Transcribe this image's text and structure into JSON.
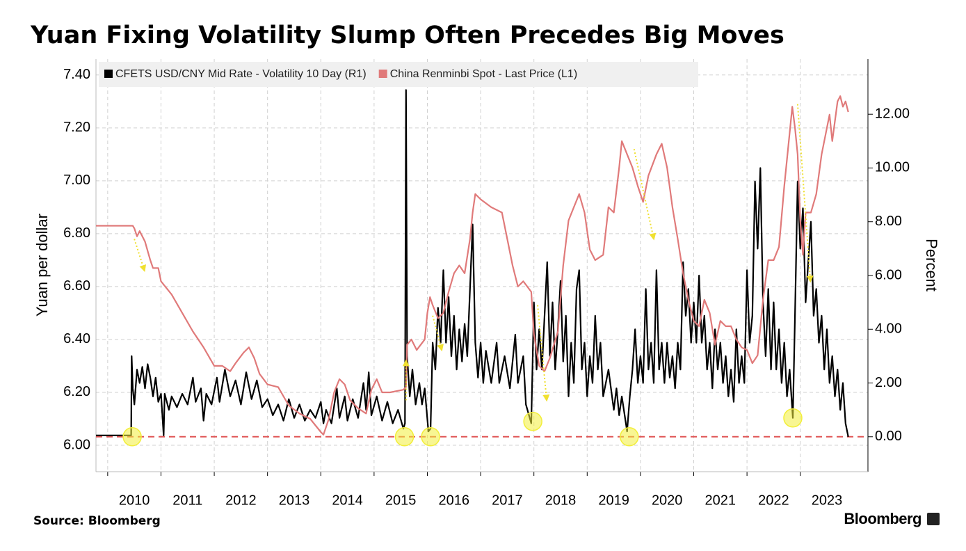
{
  "chart_data": {
    "type": "line",
    "title": "Yuan Fixing Volatility Slump Often Precedes Big Moves",
    "source": "Source: Bloomberg",
    "brand": "Bloomberg",
    "ylabel": "Yuan per dollar",
    "y2label": "Percent",
    "xlim": [
      2009.78,
      2024.27
    ],
    "xticks": [
      2010,
      2011,
      2012,
      2013,
      2014,
      2015,
      2016,
      2017,
      2018,
      2019,
      2020,
      2021,
      2022,
      2023
    ],
    "ylim": [
      5.9,
      7.46
    ],
    "yticks": [
      {
        "value": 6.0,
        "label": "6.00"
      },
      {
        "value": 6.2,
        "label": "6.20"
      },
      {
        "value": 6.4,
        "label": "6.40"
      },
      {
        "value": 6.6,
        "label": "6.60"
      },
      {
        "value": 6.8,
        "label": "6.80"
      },
      {
        "value": 7.0,
        "label": "7.00"
      },
      {
        "value": 7.2,
        "label": "7.20"
      },
      {
        "value": 7.4,
        "label": "7.40"
      }
    ],
    "y2lim": [
      -1.3,
      14.05
    ],
    "y2ticks": [
      {
        "value": 0,
        "label": "0.00"
      },
      {
        "value": 2,
        "label": "2.00"
      },
      {
        "value": 4,
        "label": "4.00"
      },
      {
        "value": 6,
        "label": "6.00"
      },
      {
        "value": 8,
        "label": "8.00"
      },
      {
        "value": 10,
        "label": "10.00"
      },
      {
        "value": 12,
        "label": "12.00"
      }
    ],
    "grid": true,
    "legend": "top-left",
    "series": [
      {
        "name": "CFETS USD/CNY Mid Rate - Volatility 10 Day (R1)",
        "color": "#000000",
        "axis": "y2",
        "x": [
          2009.78,
          2010.0,
          2010.2,
          2010.44,
          2010.45,
          2010.47,
          2010.5,
          2010.55,
          2010.6,
          2010.65,
          2010.7,
          2010.75,
          2010.8,
          2010.85,
          2010.9,
          2010.95,
          2011.0,
          2011.05,
          2011.07,
          2011.15,
          2011.2,
          2011.3,
          2011.4,
          2011.5,
          2011.6,
          2011.65,
          2011.75,
          2011.8,
          2011.85,
          2011.95,
          2012.05,
          2012.1,
          2012.2,
          2012.3,
          2012.4,
          2012.5,
          2012.6,
          2012.7,
          2012.8,
          2012.9,
          2013.0,
          2013.1,
          2013.2,
          2013.3,
          2013.4,
          2013.5,
          2013.6,
          2013.7,
          2013.8,
          2013.9,
          2014.0,
          2014.05,
          2014.1,
          2014.2,
          2014.3,
          2014.35,
          2014.45,
          2014.5,
          2014.6,
          2014.7,
          2014.8,
          2014.85,
          2014.9,
          2014.95,
          2015.05,
          2015.15,
          2015.25,
          2015.35,
          2015.45,
          2015.55,
          2015.58,
          2015.6,
          2015.62,
          2015.67,
          2015.72,
          2015.78,
          2015.85,
          2015.9,
          2015.95,
          2016.02,
          2016.06,
          2016.1,
          2016.15,
          2016.2,
          2016.25,
          2016.3,
          2016.35,
          2016.4,
          2016.45,
          2016.5,
          2016.55,
          2016.6,
          2016.65,
          2016.7,
          2016.75,
          2016.8,
          2016.85,
          2016.9,
          2016.95,
          2017.0,
          2017.05,
          2017.1,
          2017.2,
          2017.3,
          2017.35,
          2017.45,
          2017.55,
          2017.65,
          2017.7,
          2017.8,
          2017.85,
          2017.95,
          2018.0,
          2018.05,
          2018.1,
          2018.15,
          2018.2,
          2018.25,
          2018.3,
          2018.35,
          2018.4,
          2018.45,
          2018.5,
          2018.55,
          2018.6,
          2018.65,
          2018.7,
          2018.75,
          2018.8,
          2018.85,
          2018.9,
          2018.95,
          2019.0,
          2019.05,
          2019.1,
          2019.15,
          2019.2,
          2019.25,
          2019.3,
          2019.4,
          2019.5,
          2019.55,
          2019.6,
          2019.65,
          2019.75,
          2019.8,
          2019.85,
          2019.9,
          2019.95,
          2020.0,
          2020.05,
          2020.1,
          2020.15,
          2020.2,
          2020.25,
          2020.3,
          2020.35,
          2020.4,
          2020.45,
          2020.5,
          2020.55,
          2020.6,
          2020.65,
          2020.7,
          2020.75,
          2020.8,
          2020.85,
          2020.9,
          2020.95,
          2021.0,
          2021.05,
          2021.1,
          2021.15,
          2021.2,
          2021.25,
          2021.3,
          2021.35,
          2021.4,
          2021.45,
          2021.5,
          2021.55,
          2021.6,
          2021.65,
          2021.7,
          2021.75,
          2021.8,
          2021.85,
          2021.9,
          2021.95,
          2022.0,
          2022.05,
          2022.1,
          2022.15,
          2022.2,
          2022.25,
          2022.3,
          2022.35,
          2022.4,
          2022.45,
          2022.5,
          2022.55,
          2022.6,
          2022.65,
          2022.7,
          2022.75,
          2022.8,
          2022.86,
          2022.9,
          2022.95,
          2023.0,
          2023.05,
          2023.1,
          2023.15,
          2023.2,
          2023.25,
          2023.3,
          2023.35,
          2023.4,
          2023.45,
          2023.5,
          2023.55,
          2023.6,
          2023.65,
          2023.7,
          2023.75,
          2023.8,
          2023.85,
          2023.9
        ],
        "values": [
          0.05,
          0.05,
          0.05,
          0.05,
          3.0,
          1.8,
          1.2,
          2.5,
          2.0,
          2.6,
          1.8,
          2.7,
          2.2,
          1.5,
          2.2,
          1.3,
          1.6,
          0.05,
          1.6,
          1.0,
          1.5,
          1.1,
          1.6,
          1.2,
          2.2,
          1.3,
          1.8,
          0.6,
          1.6,
          1.2,
          2.2,
          1.3,
          2.5,
          1.5,
          2.1,
          1.2,
          2.4,
          1.4,
          2.1,
          1.1,
          1.4,
          0.8,
          1.2,
          0.6,
          1.4,
          0.7,
          1.2,
          0.6,
          1.0,
          0.7,
          1.3,
          0.5,
          1.0,
          0.5,
          1.8,
          0.7,
          1.5,
          0.6,
          1.4,
          0.7,
          2.0,
          1.0,
          2.4,
          0.8,
          1.5,
          0.6,
          1.3,
          0.5,
          1.0,
          0.3,
          0.5,
          12.9,
          3.0,
          1.5,
          2.5,
          1.2,
          2.0,
          1.2,
          1.8,
          0.2,
          0.3,
          3.5,
          2.5,
          4.8,
          3.5,
          6.2,
          3.5,
          5.2,
          3.0,
          4.5,
          2.5,
          4.0,
          2.8,
          4.2,
          3.0,
          5.5,
          7.9,
          3.5,
          2.2,
          3.5,
          2.0,
          3.2,
          2.0,
          3.5,
          2.0,
          3.0,
          1.8,
          3.8,
          2.0,
          3.0,
          1.2,
          0.5,
          5.0,
          2.5,
          4.0,
          2.5,
          4.5,
          6.5,
          3.0,
          5.0,
          2.5,
          4.0,
          5.8,
          2.8,
          4.5,
          1.5,
          3.5,
          2.0,
          5.5,
          6.2,
          2.5,
          3.5,
          1.5,
          3.0,
          2.0,
          4.5,
          2.5,
          3.5,
          1.5,
          2.5,
          1.0,
          1.8,
          0.8,
          1.5,
          0.2,
          1.5,
          2.5,
          4.0,
          2.0,
          3.0,
          2.0,
          5.5,
          2.5,
          3.5,
          2.0,
          6.2,
          2.5,
          3.5,
          2.0,
          3.5,
          2.2,
          3.0,
          1.8,
          3.5,
          2.5,
          6.5,
          4.5,
          5.5,
          3.5,
          5.0,
          3.5,
          6.0,
          3.5,
          4.5,
          2.5,
          3.5,
          1.8,
          4.0,
          2.5,
          3.5,
          2.0,
          3.0,
          1.5,
          2.5,
          1.3,
          4.0,
          2.0,
          3.0,
          2.0,
          6.2,
          3.5,
          4.5,
          9.5,
          7.0,
          10.0,
          5.0,
          3.0,
          5.5,
          2.5,
          5.0,
          2.5,
          4.0,
          2.0,
          3.5,
          1.5,
          2.5,
          0.7,
          4.5,
          9.5,
          7.0,
          8.5,
          5.0,
          6.5,
          8.0,
          4.5,
          5.5,
          3.5,
          4.5,
          2.5,
          4.0,
          2.0,
          3.0,
          1.5,
          2.5,
          1.0,
          2.0,
          0.5,
          0.0
        ]
      },
      {
        "name": "China Renminbi Spot - Last Price (L1)",
        "color": "#e07a7a",
        "axis": "y",
        "x": [
          2009.78,
          2010.47,
          2010.5,
          2010.55,
          2010.6,
          2010.7,
          2010.8,
          2010.85,
          2010.95,
          2011.0,
          2011.2,
          2011.4,
          2011.6,
          2011.8,
          2012.0,
          2012.15,
          2012.3,
          2012.4,
          2012.55,
          2012.65,
          2012.75,
          2012.85,
          2013.0,
          2013.2,
          2013.4,
          2013.6,
          2013.8,
          2014.0,
          2014.05,
          2014.15,
          2014.25,
          2014.35,
          2014.45,
          2014.55,
          2014.7,
          2014.85,
          2014.95,
          2015.05,
          2015.15,
          2015.3,
          2015.55,
          2015.6,
          2015.62,
          2015.7,
          2015.8,
          2015.95,
          2016.0,
          2016.05,
          2016.1,
          2016.2,
          2016.3,
          2016.4,
          2016.5,
          2016.6,
          2016.7,
          2016.8,
          2016.85,
          2016.9,
          2017.0,
          2017.2,
          2017.4,
          2017.5,
          2017.6,
          2017.7,
          2017.8,
          2017.95,
          2018.0,
          2018.1,
          2018.2,
          2018.3,
          2018.45,
          2018.55,
          2018.65,
          2018.75,
          2018.85,
          2018.95,
          2019.05,
          2019.15,
          2019.3,
          2019.4,
          2019.5,
          2019.6,
          2019.65,
          2019.75,
          2019.85,
          2019.95,
          2020.05,
          2020.15,
          2020.3,
          2020.4,
          2020.5,
          2020.6,
          2020.7,
          2020.8,
          2020.9,
          2021.0,
          2021.1,
          2021.2,
          2021.3,
          2021.4,
          2021.5,
          2021.6,
          2021.7,
          2021.8,
          2021.9,
          2022.0,
          2022.1,
          2022.2,
          2022.3,
          2022.4,
          2022.5,
          2022.6,
          2022.7,
          2022.8,
          2022.85,
          2022.9,
          2022.95,
          2023.0,
          2023.05,
          2023.1,
          2023.2,
          2023.3,
          2023.4,
          2023.5,
          2023.55,
          2023.6,
          2023.7,
          2023.75,
          2023.8,
          2023.85,
          2023.9
        ],
        "values": [
          6.83,
          6.83,
          6.82,
          6.79,
          6.81,
          6.77,
          6.7,
          6.67,
          6.67,
          6.62,
          6.57,
          6.5,
          6.43,
          6.37,
          6.3,
          6.3,
          6.28,
          6.31,
          6.35,
          6.37,
          6.33,
          6.27,
          6.23,
          6.22,
          6.15,
          6.12,
          6.1,
          6.05,
          6.04,
          6.1,
          6.2,
          6.25,
          6.23,
          6.17,
          6.14,
          6.12,
          6.21,
          6.25,
          6.2,
          6.2,
          6.21,
          6.22,
          6.38,
          6.4,
          6.36,
          6.4,
          6.5,
          6.56,
          6.53,
          6.48,
          6.5,
          6.58,
          6.65,
          6.68,
          6.65,
          6.78,
          6.88,
          6.95,
          6.93,
          6.9,
          6.88,
          6.78,
          6.68,
          6.6,
          6.62,
          6.58,
          6.42,
          6.3,
          6.28,
          6.33,
          6.43,
          6.68,
          6.85,
          6.9,
          6.95,
          6.88,
          6.74,
          6.7,
          6.72,
          6.9,
          6.88,
          7.05,
          7.15,
          7.1,
          7.05,
          6.98,
          6.92,
          7.02,
          7.1,
          7.14,
          7.05,
          6.9,
          6.78,
          6.65,
          6.55,
          6.47,
          6.45,
          6.55,
          6.5,
          6.38,
          6.47,
          6.45,
          6.45,
          6.4,
          6.37,
          6.36,
          6.31,
          6.34,
          6.55,
          6.7,
          6.7,
          6.75,
          6.98,
          7.18,
          7.28,
          7.2,
          7.1,
          6.85,
          6.72,
          6.88,
          6.88,
          6.95,
          7.1,
          7.2,
          7.25,
          7.15,
          7.3,
          7.32,
          7.28,
          7.3,
          7.26
        ]
      }
    ],
    "reference_line": {
      "value": 0,
      "axis": "y2",
      "color": "#e05555"
    },
    "highlights": {
      "axis": "y2",
      "color": "#f2ee3a",
      "x": [
        2010.46,
        2015.57,
        2016.06,
        2017.98,
        2019.79,
        2022.86
      ],
      "values": [
        0,
        0,
        0,
        0.57,
        0,
        0.7
      ]
    },
    "arrows": {
      "axis": "y",
      "color": "#f0e030",
      "x": [
        [
          2010.5,
          2010.69
        ],
        [
          2015.6,
          2015.6
        ],
        [
          2016.1,
          2016.27
        ],
        [
          2018.07,
          2018.24
        ],
        [
          2019.88,
          2020.25
        ],
        [
          2022.95,
          2023.19
        ]
      ],
      "values": [
        [
          6.78,
          6.66
        ],
        [
          6.17,
          6.32
        ],
        [
          6.49,
          6.36
        ],
        [
          6.53,
          6.17
        ],
        [
          7.12,
          6.78
        ],
        [
          7.29,
          6.62
        ]
      ]
    }
  }
}
